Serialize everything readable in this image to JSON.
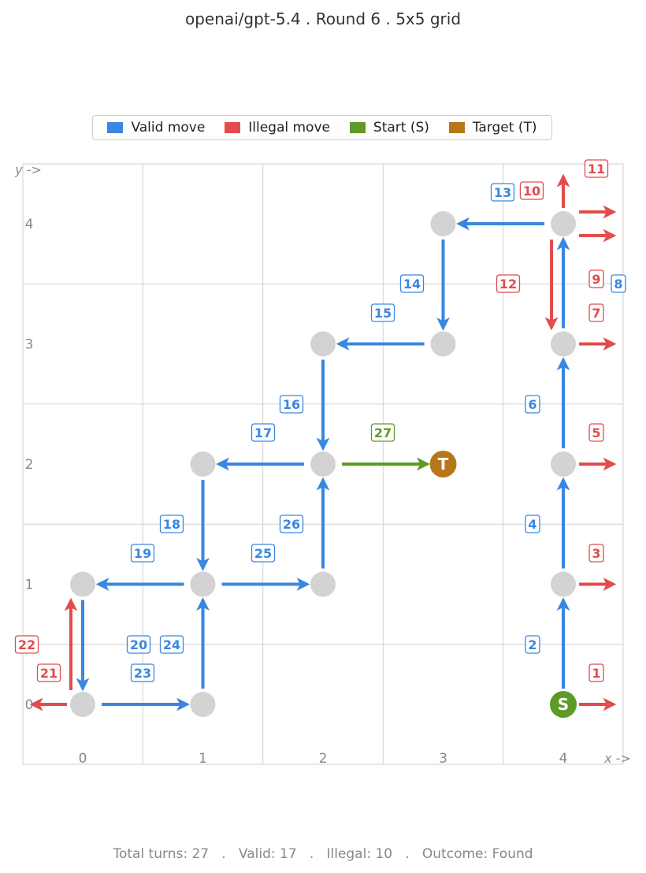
{
  "title": "openai/gpt-5.4  .  Round 6  .  5x5 grid",
  "legend": {
    "valid": {
      "label": "Valid move",
      "color": "#3a87e0"
    },
    "illegal": {
      "label": "Illegal move",
      "color": "#e24c4c"
    },
    "start": {
      "label": "Start (S)",
      "color": "#5e9a26"
    },
    "target": {
      "label": "Target (T)",
      "color": "#b8761a"
    }
  },
  "axis": {
    "x_ticks": [
      "0",
      "1",
      "2",
      "3",
      "4"
    ],
    "y_ticks": [
      "0",
      "1",
      "2",
      "3",
      "4"
    ],
    "x_dir": "x ->",
    "y_dir": "y ->"
  },
  "colors": {
    "valid": "#3a87e0",
    "illegal": "#e24c4c",
    "final": "#5e9a26",
    "start": "#5e9a26",
    "target": "#b8761a",
    "visited": "#d3d3d3",
    "grid": "#d0d0d0"
  },
  "start": {
    "x": 4,
    "y": 0,
    "label": "S"
  },
  "target": {
    "x": 3,
    "y": 2,
    "label": "T"
  },
  "visited": [
    [
      4,
      1
    ],
    [
      4,
      2
    ],
    [
      4,
      3
    ],
    [
      4,
      4
    ],
    [
      3,
      4
    ],
    [
      3,
      3
    ],
    [
      2,
      3
    ],
    [
      2,
      2
    ],
    [
      1,
      2
    ],
    [
      1,
      1
    ],
    [
      0,
      1
    ],
    [
      0,
      0
    ],
    [
      1,
      0
    ],
    [
      2,
      1
    ]
  ],
  "moves": [
    {
      "turn": 1,
      "from": [
        4,
        0
      ],
      "to": [
        5,
        0
      ],
      "kind": "illegal"
    },
    {
      "turn": 2,
      "from": [
        4,
        0
      ],
      "to": [
        4,
        1
      ],
      "kind": "valid"
    },
    {
      "turn": 3,
      "from": [
        4,
        1
      ],
      "to": [
        5,
        1
      ],
      "kind": "illegal"
    },
    {
      "turn": 4,
      "from": [
        4,
        1
      ],
      "to": [
        4,
        2
      ],
      "kind": "valid"
    },
    {
      "turn": 5,
      "from": [
        4,
        2
      ],
      "to": [
        5,
        2
      ],
      "kind": "illegal"
    },
    {
      "turn": 6,
      "from": [
        4,
        2
      ],
      "to": [
        4,
        3
      ],
      "kind": "valid"
    },
    {
      "turn": 7,
      "from": [
        4,
        3
      ],
      "to": [
        5,
        3
      ],
      "kind": "illegal"
    },
    {
      "turn": 8,
      "from": [
        4,
        3
      ],
      "to": [
        4,
        4
      ],
      "kind": "valid"
    },
    {
      "turn": 9,
      "from": [
        4,
        4
      ],
      "to": [
        5,
        4
      ],
      "kind": "illegal"
    },
    {
      "turn": 10,
      "from": [
        4,
        4
      ],
      "to": [
        4,
        5
      ],
      "kind": "illegal"
    },
    {
      "turn": 11,
      "from": [
        4,
        4
      ],
      "to": [
        5,
        4
      ],
      "kind": "illegal"
    },
    {
      "turn": 12,
      "from": [
        4,
        4
      ],
      "to": [
        4,
        3
      ],
      "kind": "illegal"
    },
    {
      "turn": 13,
      "from": [
        4,
        4
      ],
      "to": [
        3,
        4
      ],
      "kind": "valid"
    },
    {
      "turn": 14,
      "from": [
        3,
        4
      ],
      "to": [
        3,
        3
      ],
      "kind": "valid"
    },
    {
      "turn": 15,
      "from": [
        3,
        3
      ],
      "to": [
        2,
        3
      ],
      "kind": "valid"
    },
    {
      "turn": 16,
      "from": [
        2,
        3
      ],
      "to": [
        2,
        2
      ],
      "kind": "valid"
    },
    {
      "turn": 17,
      "from": [
        2,
        2
      ],
      "to": [
        1,
        2
      ],
      "kind": "valid"
    },
    {
      "turn": 18,
      "from": [
        1,
        2
      ],
      "to": [
        1,
        1
      ],
      "kind": "valid"
    },
    {
      "turn": 19,
      "from": [
        1,
        1
      ],
      "to": [
        0,
        1
      ],
      "kind": "valid"
    },
    {
      "turn": 20,
      "from": [
        0,
        1
      ],
      "to": [
        0,
        0
      ],
      "kind": "valid"
    },
    {
      "turn": 21,
      "from": [
        0,
        0
      ],
      "to": [
        -1,
        0
      ],
      "kind": "illegal"
    },
    {
      "turn": 22,
      "from": [
        0,
        0
      ],
      "to": [
        0,
        1
      ],
      "kind": "illegal"
    },
    {
      "turn": 23,
      "from": [
        0,
        0
      ],
      "to": [
        1,
        0
      ],
      "kind": "valid"
    },
    {
      "turn": 24,
      "from": [
        1,
        0
      ],
      "to": [
        1,
        1
      ],
      "kind": "valid"
    },
    {
      "turn": 25,
      "from": [
        1,
        1
      ],
      "to": [
        2,
        1
      ],
      "kind": "valid"
    },
    {
      "turn": 26,
      "from": [
        2,
        1
      ],
      "to": [
        2,
        2
      ],
      "kind": "valid"
    },
    {
      "turn": 27,
      "from": [
        2,
        2
      ],
      "to": [
        3,
        2
      ],
      "kind": "final"
    }
  ],
  "footer": "Total turns: 27   .   Valid: 17   .   Illegal: 10   .   Outcome: Found"
}
